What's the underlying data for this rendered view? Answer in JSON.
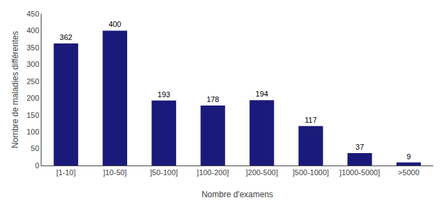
{
  "chart_data": {
    "type": "bar",
    "categories": [
      "[1-10]",
      "]10-50]",
      "]50-100]",
      "]100-200]",
      "]200-500]",
      "]500-1000]",
      "]1000-5000]",
      ">5000"
    ],
    "values": [
      362,
      400,
      193,
      178,
      194,
      117,
      37,
      9
    ],
    "color": "#1a1a7a",
    "xlabel": "Nombre d'examens",
    "ylabel": "Nombre de maladies différentes",
    "ylim": [
      0,
      450
    ],
    "yticks": [
      0,
      50,
      100,
      150,
      200,
      250,
      300,
      350,
      400,
      450
    ],
    "data_labels": true,
    "grid": false
  }
}
